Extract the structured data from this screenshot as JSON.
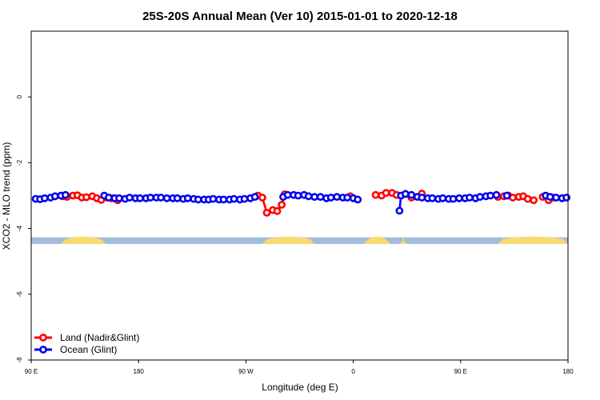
{
  "chart_data": {
    "type": "line",
    "title": "25S-20S Annual Mean (Ver 10)   2015-01-01 to 2020-12-18",
    "xlabel": "Longitude (deg E)",
    "ylabel": "XCO2 - MLO trend (ppm)",
    "xlim": [
      90,
      450
    ],
    "ylim": [
      -8,
      2
    ],
    "x_ticks": [
      {
        "value": 90,
        "label": "90 E"
      },
      {
        "value": 162,
        "label": "180"
      },
      {
        "value": 234,
        "label": "90 W"
      },
      {
        "value": 306,
        "label": "0"
      },
      {
        "value": 378,
        "label": "90 E"
      },
      {
        "value": 450,
        "label": "180"
      }
    ],
    "y_ticks": [
      {
        "value": 0,
        "label": "0"
      },
      {
        "value": -2,
        "label": "-2"
      },
      {
        "value": -4,
        "label": "-4"
      },
      {
        "value": -6,
        "label": "-6"
      },
      {
        "value": -8,
        "label": "-8"
      }
    ],
    "grid": false,
    "legend_position": "bottom-left",
    "land_ocean_band": {
      "y_range": [
        -4.47,
        -4.27
      ],
      "ocean_color": "#a3bbdd",
      "land_color": "#fad96e",
      "land_x": [
        [
          110,
          140
        ],
        [
          245,
          280
        ],
        [
          313,
          331
        ],
        [
          337,
          342
        ],
        [
          403,
          450
        ]
      ]
    },
    "series": [
      {
        "name": "Land (Nadir&Glint)",
        "color": "#ff0000",
        "points": [
          [
            111,
            -3.02
          ],
          [
            114,
            -3.04
          ],
          [
            118,
            -3.0
          ],
          [
            121,
            -2.99
          ],
          [
            124,
            -3.06
          ],
          [
            127,
            -3.05
          ],
          [
            131,
            -3.02
          ],
          [
            134,
            -3.08
          ],
          [
            137,
            -3.13
          ],
          [
            141,
            -3.06
          ],
          [
            144,
            -3.08
          ],
          [
            148,
            -3.14
          ],
          [
            242,
            -3.0
          ],
          [
            245,
            -3.06
          ],
          [
            248,
            -3.52
          ],
          [
            252,
            -3.44
          ],
          [
            255,
            -3.47
          ],
          [
            258,
            -3.28
          ],
          [
            260,
            -2.96
          ],
          [
            304,
            -3.02
          ],
          [
            321,
            -2.98
          ],
          [
            325,
            -3.0
          ],
          [
            328,
            -2.92
          ],
          [
            332,
            -2.92
          ],
          [
            335,
            -2.98
          ],
          [
            345,
            -3.06
          ],
          [
            352,
            -2.94
          ],
          [
            403,
            -3.04
          ],
          [
            407,
            -3.02
          ],
          [
            410,
            -3.0
          ],
          [
            413,
            -3.06
          ],
          [
            417,
            -3.04
          ],
          [
            420,
            -3.02
          ],
          [
            423,
            -3.1
          ],
          [
            427,
            -3.14
          ],
          [
            433,
            -3.04
          ],
          [
            437,
            -3.14
          ],
          [
            440,
            -3.06
          ]
        ]
      },
      {
        "name": "Ocean (Glint)",
        "color": "#0000ee",
        "points": [
          [
            93,
            -3.1
          ],
          [
            96,
            -3.11
          ],
          [
            99,
            -3.08
          ],
          [
            103,
            -3.06
          ],
          [
            106,
            -3.02
          ],
          [
            110,
            -3.0
          ],
          [
            113,
            -2.98
          ],
          [
            139,
            -3.0
          ],
          [
            142,
            -3.06
          ],
          [
            146,
            -3.08
          ],
          [
            149,
            -3.08
          ],
          [
            153,
            -3.1
          ],
          [
            156,
            -3.06
          ],
          [
            160,
            -3.08
          ],
          [
            163,
            -3.08
          ],
          [
            167,
            -3.08
          ],
          [
            170,
            -3.06
          ],
          [
            174,
            -3.06
          ],
          [
            177,
            -3.06
          ],
          [
            181,
            -3.08
          ],
          [
            185,
            -3.08
          ],
          [
            188,
            -3.08
          ],
          [
            192,
            -3.1
          ],
          [
            195,
            -3.08
          ],
          [
            199,
            -3.1
          ],
          [
            202,
            -3.12
          ],
          [
            206,
            -3.12
          ],
          [
            209,
            -3.12
          ],
          [
            212,
            -3.1
          ],
          [
            216,
            -3.12
          ],
          [
            219,
            -3.12
          ],
          [
            223,
            -3.12
          ],
          [
            226,
            -3.1
          ],
          [
            230,
            -3.12
          ],
          [
            233,
            -3.1
          ],
          [
            237,
            -3.08
          ],
          [
            240,
            -3.04
          ],
          [
            259,
            -3.04
          ],
          [
            262,
            -2.98
          ],
          [
            266,
            -2.98
          ],
          [
            269,
            -3.0
          ],
          [
            273,
            -2.98
          ],
          [
            276,
            -3.02
          ],
          [
            280,
            -3.04
          ],
          [
            284,
            -3.04
          ],
          [
            288,
            -3.08
          ],
          [
            291,
            -3.06
          ],
          [
            295,
            -3.04
          ],
          [
            299,
            -3.06
          ],
          [
            302,
            -3.06
          ],
          [
            306,
            -3.08
          ],
          [
            309,
            -3.12
          ],
          [
            337,
            -3.46
          ],
          [
            338,
            -3.0
          ],
          [
            341,
            -2.95
          ],
          [
            345,
            -2.98
          ],
          [
            349,
            -3.04
          ],
          [
            352,
            -3.06
          ],
          [
            356,
            -3.08
          ],
          [
            359,
            -3.08
          ],
          [
            363,
            -3.1
          ],
          [
            366,
            -3.08
          ],
          [
            370,
            -3.1
          ],
          [
            373,
            -3.1
          ],
          [
            377,
            -3.08
          ],
          [
            381,
            -3.08
          ],
          [
            384,
            -3.06
          ],
          [
            388,
            -3.08
          ],
          [
            391,
            -3.04
          ],
          [
            395,
            -3.02
          ],
          [
            398,
            -3.0
          ],
          [
            402,
            -2.98
          ],
          [
            409,
            -3.0
          ],
          [
            435,
            -3.0
          ],
          [
            438,
            -3.04
          ],
          [
            442,
            -3.06
          ],
          [
            446,
            -3.08
          ],
          [
            449,
            -3.06
          ]
        ]
      }
    ]
  }
}
